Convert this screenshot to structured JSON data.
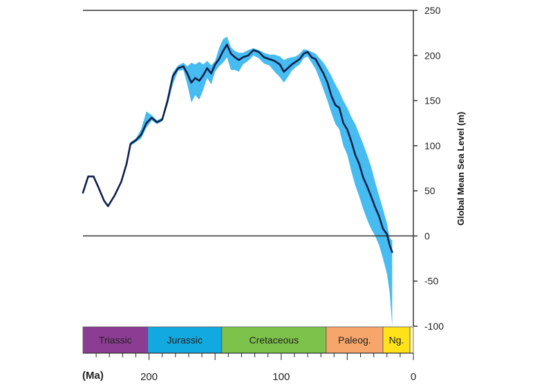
{
  "chart_data": {
    "type": "line",
    "title": "",
    "xlabel": "(Ma)",
    "ylabel": "Global Mean Sea Level (m)",
    "xlim": [
      250,
      0
    ],
    "ylim": [
      -100,
      250
    ],
    "x_ticks": [
      200,
      100,
      0
    ],
    "x_tick_labels": [
      "200",
      "100",
      "0"
    ],
    "y_ticks": [
      250,
      200,
      150,
      100,
      50,
      0,
      -50,
      -100
    ],
    "y_tick_labels": [
      "250",
      "200",
      "150",
      "100",
      "50",
      "0",
      "-50",
      "-100"
    ],
    "grid": false,
    "series": [
      {
        "color": "#0d1f4a",
        "points": [
          [
            250,
            48
          ],
          [
            246,
            66
          ],
          [
            242,
            66
          ],
          [
            238,
            53
          ],
          [
            234,
            39
          ],
          [
            231,
            33
          ],
          [
            226,
            45
          ],
          [
            221,
            60
          ],
          [
            217,
            80
          ],
          [
            214,
            102
          ],
          [
            210,
            106
          ],
          [
            206,
            112
          ],
          [
            202,
            125
          ],
          [
            198,
            131
          ],
          [
            194,
            126
          ],
          [
            190,
            129
          ],
          [
            186,
            150
          ],
          [
            182,
            177
          ],
          [
            178,
            186
          ],
          [
            174,
            188
          ],
          [
            171,
            180
          ],
          [
            168,
            170
          ],
          [
            165,
            175
          ],
          [
            162,
            172
          ],
          [
            159,
            178
          ],
          [
            156,
            186
          ],
          [
            153,
            180
          ],
          [
            150,
            190
          ],
          [
            147,
            196
          ],
          [
            144,
            205
          ],
          [
            141,
            212
          ],
          [
            138,
            202
          ],
          [
            135,
            198
          ],
          [
            132,
            195
          ],
          [
            129,
            198
          ],
          [
            125,
            200
          ],
          [
            121,
            206
          ],
          [
            117,
            204
          ],
          [
            113,
            198
          ],
          [
            109,
            196
          ],
          [
            105,
            194
          ],
          [
            101,
            190
          ],
          [
            98,
            182
          ],
          [
            95,
            186
          ],
          [
            92,
            190
          ],
          [
            89,
            193
          ],
          [
            86,
            196
          ],
          [
            83,
            202
          ],
          [
            80,
            204
          ],
          [
            77,
            198
          ],
          [
            74,
            196
          ],
          [
            71,
            188
          ],
          [
            68,
            180
          ],
          [
            65,
            170
          ],
          [
            62,
            155
          ],
          [
            59,
            145
          ],
          [
            56,
            142
          ],
          [
            53,
            125
          ],
          [
            50,
            118
          ],
          [
            47,
            105
          ],
          [
            44,
            90
          ],
          [
            41,
            80
          ],
          [
            38,
            65
          ],
          [
            35,
            55
          ],
          [
            32,
            44
          ],
          [
            29,
            32
          ],
          [
            26,
            22
          ],
          [
            23,
            8
          ],
          [
            20,
            2
          ],
          [
            18,
            -10
          ],
          [
            16,
            -18
          ]
        ]
      }
    ],
    "uncertainty_band": {
      "color": "#33b5f0",
      "upper": [
        [
          250,
          48
        ],
        [
          246,
          66
        ],
        [
          242,
          66
        ],
        [
          238,
          53
        ],
        [
          234,
          39
        ],
        [
          231,
          33
        ],
        [
          226,
          45
        ],
        [
          221,
          60
        ],
        [
          217,
          80
        ],
        [
          214,
          104
        ],
        [
          210,
          108
        ],
        [
          206,
          118
        ],
        [
          202,
          138
        ],
        [
          198,
          134
        ],
        [
          194,
          128
        ],
        [
          190,
          131
        ],
        [
          186,
          154
        ],
        [
          182,
          181
        ],
        [
          178,
          189
        ],
        [
          174,
          192
        ],
        [
          171,
          188
        ],
        [
          168,
          192
        ],
        [
          165,
          190
        ],
        [
          162,
          193
        ],
        [
          159,
          190
        ],
        [
          156,
          194
        ],
        [
          153,
          189
        ],
        [
          150,
          194
        ],
        [
          147,
          208
        ],
        [
          144,
          218
        ],
        [
          141,
          221
        ],
        [
          138,
          209
        ],
        [
          135,
          205
        ],
        [
          132,
          203
        ],
        [
          129,
          203
        ],
        [
          125,
          206
        ],
        [
          121,
          208
        ],
        [
          117,
          206
        ],
        [
          113,
          203
        ],
        [
          109,
          201
        ],
        [
          105,
          201
        ],
        [
          101,
          199
        ],
        [
          98,
          195
        ],
        [
          95,
          197
        ],
        [
          92,
          198
        ],
        [
          89,
          199
        ],
        [
          86,
          202
        ],
        [
          83,
          207
        ],
        [
          80,
          206
        ],
        [
          77,
          204
        ],
        [
          74,
          202
        ],
        [
          71,
          197
        ],
        [
          68,
          192
        ],
        [
          65,
          185
        ],
        [
          62,
          177
        ],
        [
          59,
          168
        ],
        [
          56,
          160
        ],
        [
          53,
          150
        ],
        [
          50,
          142
        ],
        [
          47,
          132
        ],
        [
          44,
          124
        ],
        [
          41,
          113
        ],
        [
          38,
          102
        ],
        [
          35,
          90
        ],
        [
          32,
          77
        ],
        [
          29,
          60
        ],
        [
          26,
          45
        ],
        [
          23,
          30
        ],
        [
          20,
          14
        ],
        [
          18,
          -2
        ],
        [
          16,
          -5
        ]
      ],
      "lower": [
        [
          250,
          48
        ],
        [
          246,
          66
        ],
        [
          242,
          66
        ],
        [
          238,
          53
        ],
        [
          234,
          39
        ],
        [
          231,
          33
        ],
        [
          226,
          45
        ],
        [
          221,
          60
        ],
        [
          217,
          80
        ],
        [
          214,
          100
        ],
        [
          210,
          104
        ],
        [
          206,
          108
        ],
        [
          202,
          120
        ],
        [
          198,
          128
        ],
        [
          194,
          124
        ],
        [
          190,
          127
        ],
        [
          186,
          145
        ],
        [
          182,
          168
        ],
        [
          178,
          183
        ],
        [
          174,
          184
        ],
        [
          171,
          168
        ],
        [
          168,
          148
        ],
        [
          165,
          156
        ],
        [
          162,
          151
        ],
        [
          159,
          162
        ],
        [
          156,
          175
        ],
        [
          153,
          168
        ],
        [
          150,
          182
        ],
        [
          147,
          188
        ],
        [
          144,
          192
        ],
        [
          141,
          198
        ],
        [
          138,
          184
        ],
        [
          135,
          184
        ],
        [
          132,
          182
        ],
        [
          129,
          190
        ],
        [
          125,
          194
        ],
        [
          121,
          200
        ],
        [
          117,
          197
        ],
        [
          113,
          191
        ],
        [
          109,
          189
        ],
        [
          105,
          182
        ],
        [
          101,
          176
        ],
        [
          98,
          170
        ],
        [
          95,
          176
        ],
        [
          92,
          183
        ],
        [
          89,
          187
        ],
        [
          86,
          190
        ],
        [
          83,
          197
        ],
        [
          80,
          199
        ],
        [
          77,
          192
        ],
        [
          74,
          185
        ],
        [
          71,
          174
        ],
        [
          68,
          162
        ],
        [
          65,
          150
        ],
        [
          62,
          136
        ],
        [
          59,
          124
        ],
        [
          56,
          118
        ],
        [
          53,
          100
        ],
        [
          50,
          90
        ],
        [
          47,
          72
        ],
        [
          44,
          56
        ],
        [
          41,
          44
        ],
        [
          38,
          30
        ],
        [
          35,
          18
        ],
        [
          32,
          8
        ],
        [
          29,
          0
        ],
        [
          26,
          -10
        ],
        [
          23,
          -25
        ],
        [
          20,
          -42
        ],
        [
          18,
          -62
        ],
        [
          16,
          -100
        ]
      ]
    },
    "periods": [
      {
        "name": "Triassic",
        "start": 250,
        "end": 201,
        "color": "#8c3d93"
      },
      {
        "name": "Jurassic",
        "start": 201,
        "end": 145,
        "color": "#12a9e0"
      },
      {
        "name": "Cretaceous",
        "start": 145,
        "end": 66,
        "color": "#7dc24a"
      },
      {
        "name": "Paleog.",
        "start": 66,
        "end": 23,
        "color": "#f6a56b"
      },
      {
        "name": "Ng.",
        "start": 23,
        "end": 2.6,
        "color": "#ffe21a"
      },
      {
        "name": "",
        "start": 2.6,
        "end": 0,
        "color": "#fff4a8"
      }
    ]
  }
}
